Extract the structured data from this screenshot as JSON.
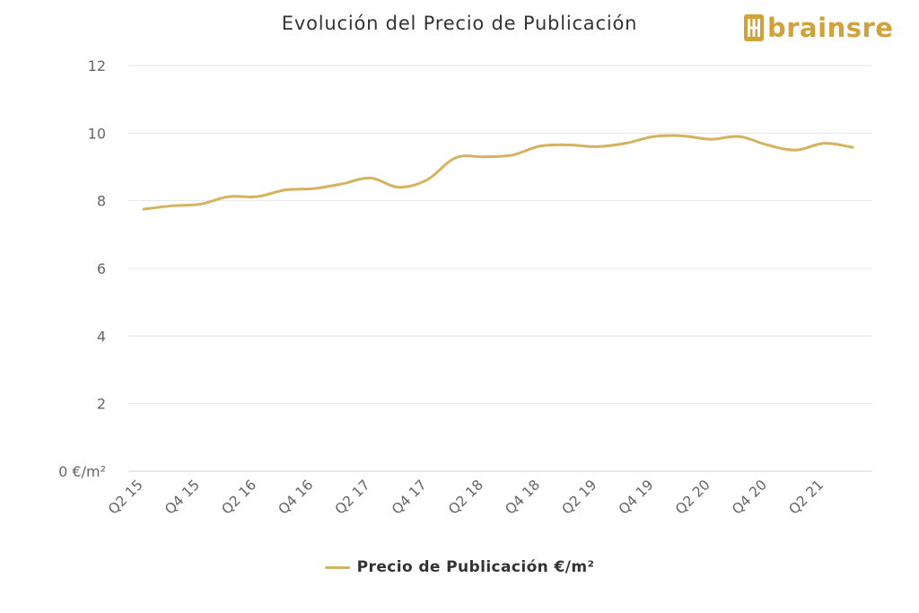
{
  "logo": {
    "text": "brainsre",
    "icon": "brainsre-logo-icon",
    "color": "#d1a23a"
  },
  "chart_data": {
    "type": "line",
    "title": "Evolución del Precio de Publicación",
    "xlabel": "",
    "ylabel": "",
    "y_unit_label": "0 €/m²",
    "ylim": [
      0,
      12
    ],
    "y_ticks": [
      0,
      2,
      4,
      6,
      8,
      10,
      12
    ],
    "y_tick_labels": [
      "0 €/m²",
      "2",
      "4",
      "6",
      "8",
      "10",
      "12"
    ],
    "grid": true,
    "legend_position": "bottom-center",
    "x": [
      "Q2 15",
      "Q3 15",
      "Q4 15",
      "Q1 16",
      "Q2 16",
      "Q3 16",
      "Q4 16",
      "Q1 17",
      "Q2 17",
      "Q3 17",
      "Q4 17",
      "Q1 18",
      "Q2 18",
      "Q3 18",
      "Q4 18",
      "Q1 19",
      "Q2 19",
      "Q3 19",
      "Q4 19",
      "Q1 20",
      "Q2 20",
      "Q3 20",
      "Q4 20",
      "Q1 21",
      "Q2 21",
      "Q3 21"
    ],
    "x_tick_labels": [
      "Q2 15",
      "Q4 15",
      "Q2 16",
      "Q4 16",
      "Q2 17",
      "Q4 17",
      "Q2 18",
      "Q4 18",
      "Q2 19",
      "Q4 19",
      "Q2 20",
      "Q4 20",
      "Q2 21"
    ],
    "series": [
      {
        "name": "Precio de Publicación €/m²",
        "color": "#d4b25e",
        "values": [
          7.75,
          7.85,
          7.9,
          8.12,
          8.12,
          8.32,
          8.36,
          8.5,
          8.67,
          8.4,
          8.62,
          9.27,
          9.3,
          9.35,
          9.62,
          9.65,
          9.6,
          9.7,
          9.9,
          9.92,
          9.82,
          9.9,
          9.65,
          9.5,
          9.7,
          9.58
        ]
      }
    ]
  }
}
